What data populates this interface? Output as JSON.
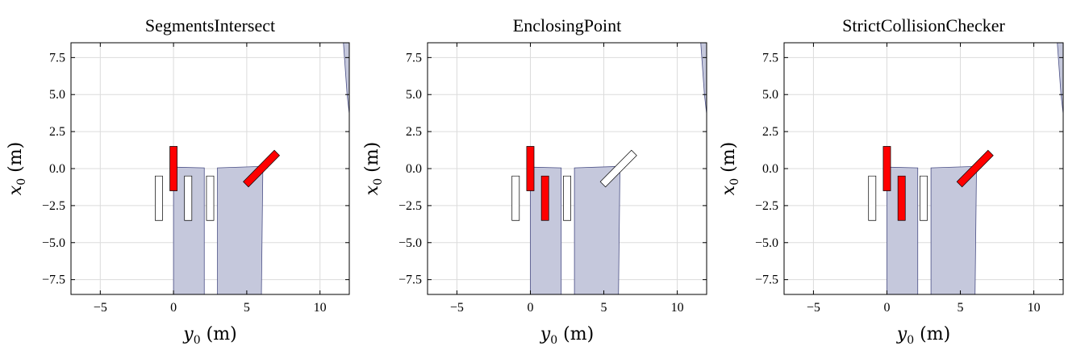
{
  "chart_data": [
    {
      "type": "region-plot",
      "title": "SegmentsIntersect",
      "xlabel": "y0 (m)",
      "ylabel": "x0 (m)",
      "xlim": [
        -7,
        12
      ],
      "ylim": [
        -8.5,
        8.5
      ],
      "xticks": [
        -5,
        0,
        5,
        10
      ],
      "yticks": [
        -7.5,
        -5.0,
        -2.5,
        0.0,
        2.5,
        5.0,
        7.5
      ],
      "grid": true,
      "regions": [
        [
          [
            0,
            -8.5
          ],
          [
            0,
            0.1
          ],
          [
            2.1,
            0.05
          ],
          [
            2.1,
            -8.5
          ]
        ],
        [
          [
            3,
            -8.5
          ],
          [
            3,
            0.05
          ],
          [
            6.1,
            0.15
          ],
          [
            6.0,
            -8.5
          ]
        ],
        [
          [
            11.6,
            8.5
          ],
          [
            11.85,
            5
          ],
          [
            12,
            3.7
          ],
          [
            12,
            8.5
          ]
        ]
      ],
      "boxes": [
        {
          "center": [
            0,
            0
          ],
          "width": 0.5,
          "length": 3,
          "angle": 0,
          "collision": true
        },
        {
          "center": [
            -1,
            -2
          ],
          "width": 0.5,
          "length": 3,
          "angle": 0,
          "collision": false
        },
        {
          "center": [
            1,
            -2
          ],
          "width": 0.5,
          "length": 3,
          "angle": 0,
          "collision": false
        },
        {
          "center": [
            2.5,
            -2
          ],
          "width": 0.5,
          "length": 3,
          "angle": 0,
          "collision": false
        },
        {
          "center": [
            6,
            0
          ],
          "width": 0.5,
          "length": 3,
          "angle": 45,
          "collision": true
        }
      ]
    },
    {
      "type": "region-plot",
      "title": "EnclosingPoint",
      "xlabel": "y0 (m)",
      "ylabel": "x0 (m)",
      "xlim": [
        -7,
        12
      ],
      "ylim": [
        -8.5,
        8.5
      ],
      "xticks": [
        -5,
        0,
        5,
        10
      ],
      "yticks": [
        -7.5,
        -5.0,
        -2.5,
        0.0,
        2.5,
        5.0,
        7.5
      ],
      "grid": true,
      "regions": [
        [
          [
            0,
            -8.5
          ],
          [
            0,
            0.1
          ],
          [
            2.1,
            0.05
          ],
          [
            2.1,
            -8.5
          ]
        ],
        [
          [
            3,
            -8.5
          ],
          [
            3,
            0.05
          ],
          [
            6.1,
            0.15
          ],
          [
            6.0,
            -8.5
          ]
        ],
        [
          [
            11.6,
            8.5
          ],
          [
            11.85,
            5
          ],
          [
            12,
            3.7
          ],
          [
            12,
            8.5
          ]
        ]
      ],
      "boxes": [
        {
          "center": [
            0,
            0
          ],
          "width": 0.5,
          "length": 3,
          "angle": 0,
          "collision": true
        },
        {
          "center": [
            -1,
            -2
          ],
          "width": 0.5,
          "length": 3,
          "angle": 0,
          "collision": false
        },
        {
          "center": [
            1,
            -2
          ],
          "width": 0.5,
          "length": 3,
          "angle": 0,
          "collision": true
        },
        {
          "center": [
            2.5,
            -2
          ],
          "width": 0.5,
          "length": 3,
          "angle": 0,
          "collision": false
        },
        {
          "center": [
            6,
            0
          ],
          "width": 0.5,
          "length": 3,
          "angle": 45,
          "collision": false
        }
      ]
    },
    {
      "type": "region-plot",
      "title": "StrictCollisionChecker",
      "xlabel": "y0 (m)",
      "ylabel": "x0 (m)",
      "xlim": [
        -7,
        12
      ],
      "ylim": [
        -8.5,
        8.5
      ],
      "xticks": [
        -5,
        0,
        5,
        10
      ],
      "yticks": [
        -7.5,
        -5.0,
        -2.5,
        0.0,
        2.5,
        5.0,
        7.5
      ],
      "grid": true,
      "regions": [
        [
          [
            0,
            -8.5
          ],
          [
            0,
            0.1
          ],
          [
            2.1,
            0.05
          ],
          [
            2.1,
            -8.5
          ]
        ],
        [
          [
            3,
            -8.5
          ],
          [
            3,
            0.05
          ],
          [
            6.1,
            0.15
          ],
          [
            6.0,
            -8.5
          ]
        ],
        [
          [
            11.6,
            8.5
          ],
          [
            11.85,
            5
          ],
          [
            12,
            3.7
          ],
          [
            12,
            8.5
          ]
        ]
      ],
      "boxes": [
        {
          "center": [
            0,
            0
          ],
          "width": 0.5,
          "length": 3,
          "angle": 0,
          "collision": true
        },
        {
          "center": [
            -1,
            -2
          ],
          "width": 0.5,
          "length": 3,
          "angle": 0,
          "collision": false
        },
        {
          "center": [
            1,
            -2
          ],
          "width": 0.5,
          "length": 3,
          "angle": 0,
          "collision": true
        },
        {
          "center": [
            2.5,
            -2
          ],
          "width": 0.5,
          "length": 3,
          "angle": 0,
          "collision": false
        },
        {
          "center": [
            6,
            0
          ],
          "width": 0.5,
          "length": 3,
          "angle": 45,
          "collision": true
        }
      ]
    }
  ],
  "colors": {
    "region_fill": "#c5c8dc",
    "region_edge": "#4a4f86",
    "collision_fill": "#ff0000",
    "free_fill": "#ffffff",
    "grid": "#dcdcdc"
  }
}
